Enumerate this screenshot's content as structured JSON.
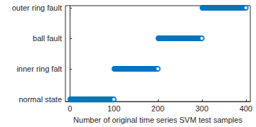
{
  "chart_data": {
    "type": "scatter",
    "x_label": "Number of original time series SVM test samples",
    "color": "#0072bd",
    "marker": "o",
    "xlim": [
      -10,
      410
    ],
    "xticks": [
      0,
      100,
      200,
      300,
      400
    ],
    "ylim": [
      0.93,
      4.07
    ],
    "yticks": [
      {
        "value": 1,
        "label": "normal state"
      },
      {
        "value": 2,
        "label": "inner ring falt"
      },
      {
        "value": 3,
        "label": "ball fault"
      },
      {
        "value": 4,
        "label": "outer ring fault"
      }
    ],
    "grid": false,
    "x": [
      1,
      2,
      3,
      4,
      5,
      6,
      7,
      8,
      9,
      10,
      11,
      12,
      13,
      14,
      15,
      16,
      17,
      18,
      19,
      20,
      21,
      22,
      23,
      24,
      25,
      26,
      27,
      28,
      29,
      30,
      31,
      32,
      33,
      34,
      35,
      36,
      37,
      38,
      39,
      40,
      41,
      42,
      43,
      44,
      45,
      46,
      47,
      48,
      49,
      50,
      51,
      52,
      53,
      54,
      55,
      56,
      57,
      58,
      59,
      60,
      61,
      62,
      63,
      64,
      65,
      66,
      67,
      68,
      69,
      70,
      71,
      72,
      73,
      74,
      75,
      76,
      77,
      78,
      79,
      80,
      81,
      82,
      83,
      84,
      85,
      86,
      87,
      88,
      89,
      90,
      91,
      92,
      93,
      94,
      95,
      96,
      97,
      98,
      99,
      100,
      101,
      102,
      103,
      104,
      105,
      106,
      107,
      108,
      109,
      110,
      111,
      112,
      113,
      114,
      115,
      116,
      117,
      118,
      119,
      120,
      121,
      122,
      123,
      124,
      125,
      126,
      127,
      128,
      129,
      130,
      131,
      132,
      133,
      134,
      135,
      136,
      137,
      138,
      139,
      140,
      141,
      142,
      143,
      144,
      145,
      146,
      147,
      148,
      149,
      150,
      151,
      152,
      153,
      154,
      155,
      156,
      157,
      158,
      159,
      160,
      161,
      162,
      163,
      164,
      165,
      166,
      167,
      168,
      169,
      170,
      171,
      172,
      173,
      174,
      175,
      176,
      177,
      178,
      179,
      180,
      181,
      182,
      183,
      184,
      185,
      186,
      187,
      188,
      189,
      190,
      191,
      192,
      193,
      194,
      195,
      196,
      197,
      198,
      199,
      200,
      201,
      202,
      203,
      204,
      205,
      206,
      207,
      208,
      209,
      210,
      211,
      212,
      213,
      214,
      215,
      216,
      217,
      218,
      219,
      220,
      221,
      222,
      223,
      224,
      225,
      226,
      227,
      228,
      229,
      230,
      231,
      232,
      233,
      234,
      235,
      236,
      237,
      238,
      239,
      240,
      241,
      242,
      243,
      244,
      245,
      246,
      247,
      248,
      249,
      250,
      251,
      252,
      253,
      254,
      255,
      256,
      257,
      258,
      259,
      260,
      261,
      262,
      263,
      264,
      265,
      266,
      267,
      268,
      269,
      270,
      271,
      272,
      273,
      274,
      275,
      276,
      277,
      278,
      279,
      280,
      281,
      282,
      283,
      284,
      285,
      286,
      287,
      288,
      289,
      290,
      291,
      292,
      293,
      294,
      295,
      296,
      297,
      298,
      299,
      300,
      301,
      302,
      303,
      304,
      305,
      306,
      307,
      308,
      309,
      310,
      311,
      312,
      313,
      314,
      315,
      316,
      317,
      318,
      319,
      320,
      321,
      322,
      323,
      324,
      325,
      326,
      327,
      328,
      329,
      330,
      331,
      332,
      333,
      334,
      335,
      336,
      337,
      338,
      339,
      340,
      341,
      342,
      343,
      344,
      345,
      346,
      347,
      348,
      349,
      350,
      351,
      352,
      353,
      354,
      355,
      356,
      357,
      358,
      359,
      360,
      361,
      362,
      363,
      364,
      365,
      366,
      367,
      368,
      369,
      370,
      371,
      372,
      373,
      374,
      375,
      376,
      377,
      378,
      379,
      380,
      381,
      382,
      383,
      384,
      385,
      386,
      387,
      388,
      389,
      390,
      391,
      392,
      393,
      394,
      395,
      396,
      397,
      398,
      399,
      400
    ],
    "values": [
      1,
      1,
      1,
      1,
      1,
      1,
      1,
      1,
      1,
      1,
      1,
      1,
      1,
      1,
      1,
      1,
      1,
      1,
      1,
      1,
      1,
      1,
      1,
      1,
      1,
      1,
      1,
      1,
      1,
      1,
      1,
      1,
      1,
      1,
      1,
      1,
      1,
      1,
      1,
      1,
      1,
      1,
      1,
      1,
      1,
      1,
      1,
      1,
      1,
      1,
      1,
      1,
      1,
      1,
      1,
      1,
      1,
      1,
      1,
      1,
      1,
      1,
      1,
      1,
      1,
      1,
      1,
      1,
      1,
      1,
      1,
      1,
      1,
      1,
      1,
      1,
      1,
      1,
      1,
      1,
      1,
      1,
      1,
      1,
      1,
      1,
      1,
      1,
      1,
      1,
      1,
      1,
      1,
      1,
      1,
      1,
      1,
      1,
      1,
      1,
      2,
      2,
      2,
      2,
      2,
      2,
      2,
      2,
      2,
      2,
      2,
      2,
      2,
      2,
      2,
      2,
      2,
      2,
      2,
      2,
      2,
      2,
      2,
      2,
      2,
      2,
      2,
      2,
      2,
      2,
      2,
      2,
      2,
      2,
      2,
      2,
      2,
      2,
      2,
      2,
      2,
      2,
      2,
      2,
      2,
      2,
      2,
      2,
      2,
      2,
      2,
      2,
      2,
      2,
      2,
      2,
      2,
      2,
      2,
      2,
      2,
      2,
      2,
      2,
      2,
      2,
      2,
      2,
      2,
      2,
      2,
      2,
      2,
      2,
      2,
      2,
      2,
      2,
      2,
      2,
      2,
      2,
      2,
      2,
      2,
      2,
      2,
      2,
      2,
      2,
      2,
      2,
      2,
      2,
      2,
      2,
      2,
      2,
      2,
      2,
      3,
      3,
      3,
      3,
      3,
      3,
      3,
      3,
      3,
      3,
      3,
      3,
      3,
      3,
      3,
      3,
      3,
      3,
      3,
      3,
      3,
      3,
      3,
      3,
      3,
      3,
      3,
      3,
      3,
      3,
      3,
      3,
      3,
      3,
      3,
      3,
      3,
      3,
      3,
      3,
      3,
      3,
      3,
      3,
      3,
      3,
      3,
      3,
      3,
      3,
      3,
      3,
      3,
      3,
      3,
      3,
      3,
      3,
      3,
      3,
      3,
      3,
      3,
      3,
      3,
      3,
      3,
      3,
      3,
      3,
      3,
      3,
      3,
      3,
      3,
      3,
      3,
      3,
      3,
      3,
      3,
      3,
      3,
      3,
      3,
      3,
      3,
      3,
      3,
      3,
      3,
      3,
      3,
      3,
      3,
      3,
      3,
      3,
      3,
      3,
      4,
      4,
      4,
      4,
      4,
      4,
      4,
      4,
      4,
      4,
      4,
      4,
      4,
      4,
      4,
      4,
      4,
      4,
      4,
      4,
      4,
      4,
      4,
      4,
      4,
      4,
      4,
      4,
      4,
      4,
      4,
      4,
      4,
      4,
      4,
      4,
      4,
      4,
      4,
      4,
      4,
      4,
      4,
      4,
      4,
      4,
      4,
      4,
      4,
      4,
      4,
      4,
      4,
      4,
      4,
      4,
      4,
      4,
      4,
      4,
      4,
      4,
      4,
      4,
      4,
      4,
      4,
      4,
      4,
      4,
      4,
      4,
      4,
      4,
      4,
      4,
      4,
      4,
      4,
      4,
      4,
      4,
      4,
      4,
      4,
      4,
      4,
      4,
      4,
      4,
      4,
      4,
      4,
      4,
      4,
      4,
      4,
      4,
      4,
      4
    ]
  }
}
